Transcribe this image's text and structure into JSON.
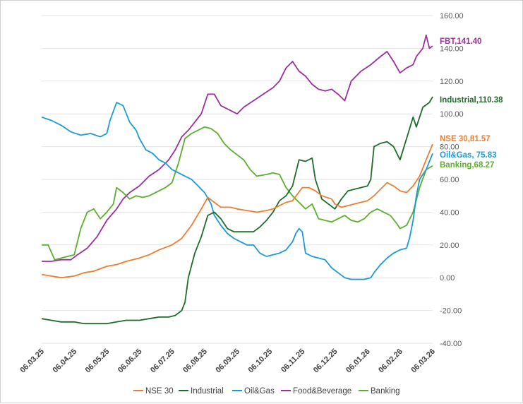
{
  "chart_data": {
    "type": "line",
    "title": "",
    "xlabel": "",
    "ylabel": "",
    "ylim": [
      -40,
      160
    ],
    "yticks": [
      "-40.00",
      "-20.00",
      "0.00",
      "20.00",
      "40.00",
      "60.00",
      "80.00",
      "100.00",
      "120.00",
      "140.00",
      "160.00"
    ],
    "x_tick_labels": [
      "06.03.25",
      "06.04.25",
      "06.05.25",
      "06.06.25",
      "06.07.25",
      "06.08.25",
      "06.09.25",
      "06.10.25",
      "06.11.25",
      "06.12.25",
      "06.01.26",
      "06.02.26",
      "06.03.26"
    ],
    "x_range": [
      0,
      12
    ],
    "legend_position": "bottom",
    "series": [
      {
        "name": "NSE 30",
        "color": "#ED7D31",
        "end_label": "NSE 30,81.57",
        "points": [
          [
            0,
            2
          ],
          [
            0.3,
            1
          ],
          [
            0.6,
            0
          ],
          [
            1,
            1
          ],
          [
            1.3,
            3
          ],
          [
            1.6,
            4
          ],
          [
            2,
            7
          ],
          [
            2.3,
            8
          ],
          [
            2.6,
            10
          ],
          [
            3,
            12
          ],
          [
            3.3,
            14
          ],
          [
            3.6,
            17
          ],
          [
            4,
            20
          ],
          [
            4.3,
            24
          ],
          [
            4.6,
            32
          ],
          [
            4.9,
            42
          ],
          [
            5.1,
            49
          ],
          [
            5.3,
            46
          ],
          [
            5.5,
            43
          ],
          [
            5.8,
            43
          ],
          [
            6,
            42
          ],
          [
            6.3,
            41
          ],
          [
            6.6,
            40
          ],
          [
            6.9,
            41
          ],
          [
            7.1,
            42
          ],
          [
            7.3,
            44
          ],
          [
            7.5,
            46
          ],
          [
            7.7,
            47
          ],
          [
            8,
            55
          ],
          [
            8.2,
            55
          ],
          [
            8.4,
            53
          ],
          [
            8.6,
            50
          ],
          [
            8.9,
            48
          ],
          [
            9,
            45
          ],
          [
            9.2,
            43
          ],
          [
            9.4,
            44
          ],
          [
            9.6,
            45
          ],
          [
            9.8,
            46
          ],
          [
            10,
            47
          ],
          [
            10.2,
            50
          ],
          [
            10.4,
            54
          ],
          [
            10.6,
            58
          ],
          [
            10.8,
            56
          ],
          [
            11,
            53
          ],
          [
            11.2,
            52
          ],
          [
            11.4,
            56
          ],
          [
            11.6,
            62
          ],
          [
            11.8,
            72
          ],
          [
            12,
            81.57
          ]
        ]
      },
      {
        "name": "Industrial",
        "color": "#1E6B2A",
        "end_label": "Industrial,110.38",
        "points": [
          [
            0,
            -25
          ],
          [
            0.3,
            -26
          ],
          [
            0.6,
            -27
          ],
          [
            1,
            -27
          ],
          [
            1.3,
            -28
          ],
          [
            1.6,
            -28
          ],
          [
            2,
            -28
          ],
          [
            2.3,
            -27
          ],
          [
            2.6,
            -26
          ],
          [
            3,
            -26
          ],
          [
            3.3,
            -25
          ],
          [
            3.6,
            -24
          ],
          [
            3.9,
            -24
          ],
          [
            4.1,
            -23
          ],
          [
            4.3,
            -20
          ],
          [
            4.4,
            -15
          ],
          [
            4.5,
            0
          ],
          [
            4.7,
            15
          ],
          [
            4.9,
            25
          ],
          [
            5.1,
            38
          ],
          [
            5.3,
            40
          ],
          [
            5.5,
            36
          ],
          [
            5.7,
            30
          ],
          [
            5.9,
            28
          ],
          [
            6.2,
            28
          ],
          [
            6.5,
            28
          ],
          [
            6.7,
            31
          ],
          [
            6.9,
            35
          ],
          [
            7.1,
            40
          ],
          [
            7.3,
            47
          ],
          [
            7.5,
            50
          ],
          [
            7.7,
            56
          ],
          [
            7.8,
            64
          ],
          [
            7.9,
            72
          ],
          [
            8.1,
            71
          ],
          [
            8.3,
            73
          ],
          [
            8.4,
            60
          ],
          [
            8.6,
            48
          ],
          [
            8.8,
            45
          ],
          [
            9.0,
            42
          ],
          [
            9.2,
            48
          ],
          [
            9.4,
            53
          ],
          [
            9.6,
            54
          ],
          [
            9.8,
            55
          ],
          [
            10.0,
            56
          ],
          [
            10.1,
            60
          ],
          [
            10.2,
            80
          ],
          [
            10.4,
            82
          ],
          [
            10.6,
            83
          ],
          [
            10.8,
            80
          ],
          [
            11.0,
            72
          ],
          [
            11.2,
            85
          ],
          [
            11.4,
            98
          ],
          [
            11.5,
            92
          ],
          [
            11.7,
            104
          ],
          [
            11.9,
            107
          ],
          [
            12,
            110.38
          ]
        ]
      },
      {
        "name": "Oil&Gas",
        "color": "#1B9AD6",
        "end_label": "Oil&Gas, 75.83",
        "points": [
          [
            0,
            98
          ],
          [
            0.3,
            96
          ],
          [
            0.6,
            93
          ],
          [
            0.9,
            89
          ],
          [
            1.2,
            87
          ],
          [
            1.5,
            88
          ],
          [
            1.8,
            86
          ],
          [
            2,
            88
          ],
          [
            2.1,
            96
          ],
          [
            2.3,
            107
          ],
          [
            2.5,
            105
          ],
          [
            2.7,
            95
          ],
          [
            2.9,
            90
          ],
          [
            3,
            85
          ],
          [
            3.2,
            78
          ],
          [
            3.4,
            76
          ],
          [
            3.6,
            72
          ],
          [
            3.8,
            70
          ],
          [
            4,
            66
          ],
          [
            4.2,
            64
          ],
          [
            4.4,
            62
          ],
          [
            4.6,
            60
          ],
          [
            4.8,
            56
          ],
          [
            5,
            52
          ],
          [
            5.2,
            45
          ],
          [
            5.3,
            38
          ],
          [
            5.5,
            32
          ],
          [
            5.7,
            27
          ],
          [
            5.9,
            24
          ],
          [
            6.1,
            22
          ],
          [
            6.3,
            20
          ],
          [
            6.5,
            20
          ],
          [
            6.7,
            15
          ],
          [
            6.9,
            13
          ],
          [
            7.1,
            14
          ],
          [
            7.3,
            15
          ],
          [
            7.5,
            17
          ],
          [
            7.7,
            22
          ],
          [
            7.8,
            27
          ],
          [
            7.9,
            30
          ],
          [
            8.0,
            28
          ],
          [
            8.1,
            15
          ],
          [
            8.3,
            13
          ],
          [
            8.5,
            12
          ],
          [
            8.7,
            11
          ],
          [
            8.9,
            6
          ],
          [
            9.1,
            3
          ],
          [
            9.3,
            0
          ],
          [
            9.5,
            -1
          ],
          [
            9.7,
            -1
          ],
          [
            9.9,
            -1
          ],
          [
            10.1,
            0
          ],
          [
            10.2,
            3
          ],
          [
            10.4,
            8
          ],
          [
            10.6,
            12
          ],
          [
            10.8,
            15
          ],
          [
            11,
            17
          ],
          [
            11.2,
            18
          ],
          [
            11.3,
            25
          ],
          [
            11.4,
            35
          ],
          [
            11.5,
            50
          ],
          [
            11.6,
            60
          ],
          [
            11.8,
            66
          ],
          [
            12,
            75.83
          ]
        ]
      },
      {
        "name": "Food&Beverage",
        "color": "#9B2F9E",
        "end_label": "FBT,141.40",
        "points": [
          [
            0,
            10
          ],
          [
            0.3,
            10
          ],
          [
            0.6,
            11
          ],
          [
            0.9,
            11
          ],
          [
            1.1,
            14
          ],
          [
            1.4,
            18
          ],
          [
            1.7,
            25
          ],
          [
            2,
            35
          ],
          [
            2.3,
            42
          ],
          [
            2.5,
            48
          ],
          [
            2.7,
            52
          ],
          [
            3,
            56
          ],
          [
            3.3,
            62
          ],
          [
            3.6,
            66
          ],
          [
            3.9,
            72
          ],
          [
            4.1,
            78
          ],
          [
            4.3,
            86
          ],
          [
            4.5,
            90
          ],
          [
            4.7,
            95
          ],
          [
            4.9,
            100
          ],
          [
            5.1,
            112
          ],
          [
            5.3,
            112
          ],
          [
            5.5,
            105
          ],
          [
            5.8,
            102
          ],
          [
            6,
            100
          ],
          [
            6.2,
            104
          ],
          [
            6.5,
            108
          ],
          [
            6.8,
            112
          ],
          [
            7.1,
            116
          ],
          [
            7.3,
            120
          ],
          [
            7.5,
            128
          ],
          [
            7.7,
            132
          ],
          [
            7.9,
            126
          ],
          [
            8.1,
            123
          ],
          [
            8.3,
            118
          ],
          [
            8.5,
            115
          ],
          [
            8.7,
            114
          ],
          [
            8.9,
            115
          ],
          [
            9.1,
            112
          ],
          [
            9.3,
            108
          ],
          [
            9.5,
            120
          ],
          [
            9.8,
            126
          ],
          [
            10.1,
            130
          ],
          [
            10.4,
            135
          ],
          [
            10.6,
            138
          ],
          [
            10.8,
            132
          ],
          [
            11,
            125
          ],
          [
            11.2,
            128
          ],
          [
            11.4,
            130
          ],
          [
            11.5,
            135
          ],
          [
            11.7,
            140
          ],
          [
            11.8,
            148
          ],
          [
            11.9,
            140
          ],
          [
            12,
            141.4
          ]
        ]
      },
      {
        "name": "Banking",
        "color": "#5CAF2E",
        "end_label": "Banking,68.27",
        "points": [
          [
            0,
            20
          ],
          [
            0.2,
            20
          ],
          [
            0.4,
            11
          ],
          [
            0.6,
            12
          ],
          [
            0.8,
            13
          ],
          [
            1,
            14
          ],
          [
            1.2,
            30
          ],
          [
            1.4,
            40
          ],
          [
            1.6,
            42
          ],
          [
            1.8,
            36
          ],
          [
            2,
            40
          ],
          [
            2.2,
            45
          ],
          [
            2.3,
            55
          ],
          [
            2.5,
            52
          ],
          [
            2.7,
            48
          ],
          [
            2.9,
            50
          ],
          [
            3.1,
            49
          ],
          [
            3.3,
            50
          ],
          [
            3.5,
            52
          ],
          [
            3.8,
            55
          ],
          [
            4,
            58
          ],
          [
            4.2,
            70
          ],
          [
            4.4,
            85
          ],
          [
            4.6,
            88
          ],
          [
            4.8,
            90
          ],
          [
            5,
            92
          ],
          [
            5.2,
            91
          ],
          [
            5.4,
            88
          ],
          [
            5.6,
            82
          ],
          [
            5.8,
            78
          ],
          [
            6,
            75
          ],
          [
            6.2,
            72
          ],
          [
            6.4,
            66
          ],
          [
            6.6,
            62
          ],
          [
            6.9,
            63
          ],
          [
            7.1,
            64
          ],
          [
            7.3,
            63
          ],
          [
            7.5,
            55
          ],
          [
            7.7,
            50
          ],
          [
            7.9,
            46
          ],
          [
            8.1,
            42
          ],
          [
            8.3,
            45
          ],
          [
            8.5,
            36
          ],
          [
            8.7,
            35
          ],
          [
            8.9,
            34
          ],
          [
            9.1,
            36
          ],
          [
            9.3,
            38
          ],
          [
            9.5,
            35
          ],
          [
            9.7,
            34
          ],
          [
            9.9,
            36
          ],
          [
            10.1,
            40
          ],
          [
            10.3,
            42
          ],
          [
            10.5,
            40
          ],
          [
            10.7,
            38
          ],
          [
            10.9,
            33
          ],
          [
            11,
            30
          ],
          [
            11.2,
            32
          ],
          [
            11.4,
            40
          ],
          [
            11.6,
            55
          ],
          [
            11.8,
            66
          ],
          [
            12,
            68.27
          ]
        ]
      }
    ]
  }
}
